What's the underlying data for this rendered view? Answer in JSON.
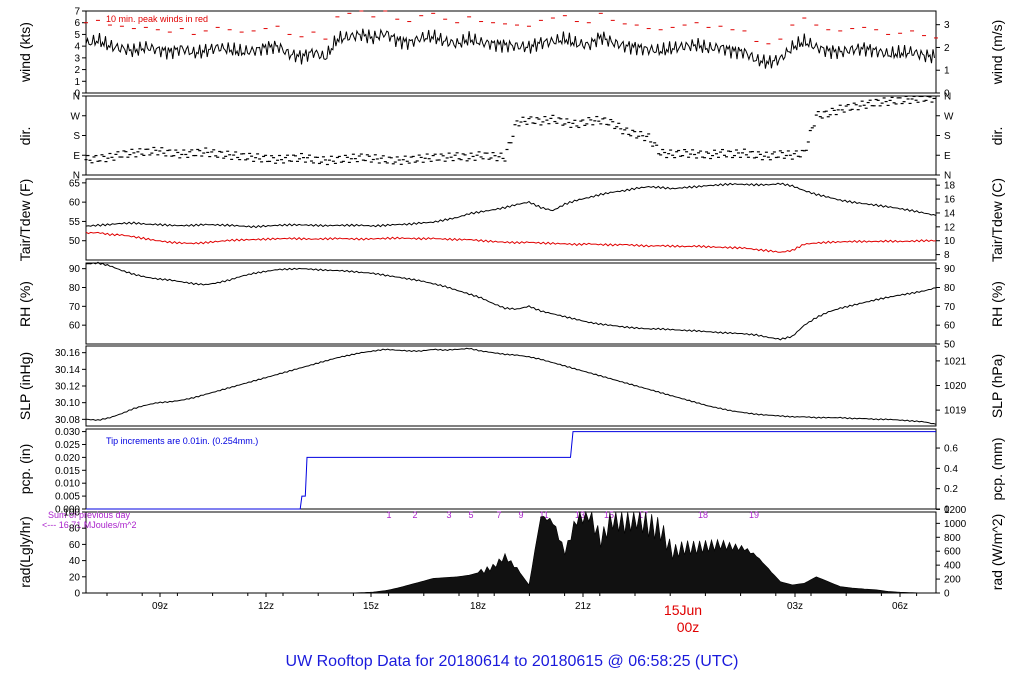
{
  "title": "UW Rooftop Data for 20180614  to  20180615 @ 06:58:25  (UTC)",
  "date_label": "15Jun",
  "date_sub": "00z",
  "colors": {
    "title": "#1a1adc",
    "peak": "#e00000",
    "dew": "#e00000",
    "pcp": "#0000e0",
    "rad_note": "#aa22cc",
    "date": "#e00000"
  },
  "chart_data": [
    {
      "type": "line",
      "panel": "wind",
      "ylabel": "wind (kts)",
      "ylabel_right": "wind (m/s)",
      "ylim": [
        0,
        7
      ],
      "yticks": [
        "0",
        "1",
        "2",
        "3",
        "4",
        "5",
        "6",
        "7"
      ],
      "yticks_right": [
        "0",
        "1",
        "2",
        "3"
      ],
      "annotation": "10 min. peak winds in red",
      "series": [
        {
          "values": [
            4.2,
            4.5,
            4.0,
            3.8,
            3.6,
            3.9,
            3.7,
            3.5,
            3.8,
            3.4,
            3.6,
            3.9,
            3.7,
            3.5,
            3.6,
            3.9,
            4.0,
            3.3,
            3.1,
            3.5,
            3.0,
            4.6,
            4.8,
            5.0,
            4.7,
            5.1,
            4.5,
            4.3,
            4.7,
            4.8,
            4.4,
            4.2,
            4.6,
            4.3,
            4.2,
            4.1,
            4.0,
            3.9,
            4.3,
            4.4,
            4.6,
            4.2,
            4.1,
            4.8,
            4.3,
            4.0,
            3.9,
            3.7,
            3.6,
            3.8,
            4.0,
            4.1,
            3.8,
            3.9,
            3.6,
            3.5,
            2.8,
            2.6,
            2.9,
            3.9,
            4.4,
            3.9,
            3.6,
            3.5,
            3.7,
            3.8,
            3.6,
            3.3,
            3.4,
            3.5,
            3.2,
            3.1
          ]
        },
        {
          "name": "peak",
          "values": [
            6.0,
            6.2,
            5.8,
            5.7,
            5.5,
            5.6,
            5.4,
            5.2,
            5.5,
            5.0,
            5.3,
            5.6,
            5.4,
            5.2,
            5.3,
            5.5,
            5.7,
            5.0,
            4.8,
            5.2,
            4.6,
            6.5,
            6.8,
            7.0,
            6.5,
            7.0,
            6.3,
            6.1,
            6.6,
            6.8,
            6.3,
            6.0,
            6.5,
            6.1,
            6.0,
            5.9,
            5.8,
            5.7,
            6.2,
            6.4,
            6.6,
            6.1,
            6.0,
            6.8,
            6.2,
            5.9,
            5.8,
            5.5,
            5.4,
            5.6,
            5.8,
            6.0,
            5.6,
            5.7,
            5.4,
            5.3,
            4.4,
            4.2,
            4.6,
            5.8,
            6.4,
            5.8,
            5.4,
            5.3,
            5.5,
            5.6,
            5.4,
            5.0,
            5.1,
            5.3,
            4.9,
            4.7
          ]
        }
      ]
    },
    {
      "type": "scatter",
      "panel": "dir",
      "ylabel": "dir.",
      "ylabel_right": "dir.",
      "yticks": [
        "N",
        "E",
        "S",
        "W",
        "N"
      ],
      "ylim": [
        0,
        360
      ],
      "series": [
        {
          "values": [
            70,
            75,
            80,
            95,
            100,
            105,
            110,
            100,
            95,
            100,
            105,
            95,
            90,
            85,
            80,
            75,
            70,
            75,
            80,
            70,
            65,
            70,
            75,
            80,
            75,
            70,
            65,
            70,
            75,
            80,
            80,
            85,
            80,
            90,
            85,
            80,
            240,
            250,
            245,
            255,
            240,
            230,
            245,
            250,
            235,
            200,
            185,
            170,
            100,
            95,
            100,
            95,
            90,
            100,
            95,
            100,
            90,
            85,
            95,
            90,
            100,
            270,
            280,
            300,
            310,
            320,
            330,
            335,
            340,
            345,
            350,
            350
          ]
        }
      ]
    },
    {
      "type": "line",
      "panel": "temp",
      "ylabel": "Tair/Tdew (F)",
      "ylabel_right": "Tair/Tdew (C)",
      "ylim": [
        45,
        66
      ],
      "yticks": [
        "50",
        "55",
        "60",
        "65"
      ],
      "yticks_right": [
        "8",
        "10",
        "12",
        "14",
        "16",
        "18"
      ],
      "series": [
        {
          "name": "Tair",
          "values": [
            53.8,
            54.0,
            54.2,
            54.5,
            54.6,
            54.3,
            54.2,
            54.0,
            53.9,
            54.0,
            54.2,
            54.1,
            54.0,
            53.8,
            53.6,
            53.8,
            54.0,
            54.1,
            54.1,
            54.0,
            53.9,
            54.0,
            54.0,
            54.0,
            53.8,
            54.0,
            54.2,
            54.3,
            54.6,
            54.8,
            55.4,
            56.0,
            57.0,
            57.5,
            58.0,
            58.6,
            59.4,
            60.0,
            58.6,
            57.8,
            59.5,
            60.5,
            61.2,
            62.0,
            62.6,
            63.0,
            63.6,
            64.0,
            63.8,
            63.5,
            63.8,
            64.0,
            64.3,
            64.5,
            64.7,
            64.6,
            64.5,
            64.5,
            64.8,
            64.2,
            63.0,
            62.0,
            61.3,
            60.5,
            60.0,
            59.6,
            59.2,
            58.8,
            58.3,
            57.8,
            57.2,
            56.5
          ]
        },
        {
          "name": "Tdew",
          "values": [
            52.0,
            52.1,
            51.6,
            51.5,
            51.0,
            50.5,
            50.0,
            49.6,
            49.4,
            49.3,
            49.5,
            49.8,
            50.1,
            50.2,
            50.3,
            50.4,
            50.5,
            50.6,
            50.5,
            50.4,
            50.5,
            50.6,
            50.5,
            50.4,
            50.5,
            50.6,
            50.7,
            50.6,
            50.5,
            50.6,
            50.4,
            50.3,
            50.3,
            50.0,
            49.8,
            49.6,
            49.5,
            49.6,
            49.4,
            49.3,
            49.2,
            49.0,
            49.2,
            49.0,
            48.9,
            49.0,
            48.8,
            48.6,
            48.7,
            48.6,
            48.5,
            48.6,
            48.4,
            48.3,
            48.2,
            48.1,
            47.7,
            47.4,
            47.0,
            47.5,
            49.1,
            49.4,
            49.6,
            49.7,
            49.8,
            49.8,
            49.8,
            49.9,
            49.8,
            49.9,
            50.0,
            50.0
          ]
        }
      ]
    },
    {
      "type": "line",
      "panel": "rh",
      "ylabel": "RH (%)",
      "ylabel_right": "RH (%)",
      "ylim": [
        50,
        93
      ],
      "yticks": [
        "60",
        "70",
        "80",
        "90"
      ],
      "yticks_right": [
        "50",
        "60",
        "70",
        "80",
        "90"
      ],
      "series": [
        {
          "values": [
            92.5,
            93.0,
            91.5,
            89.0,
            87.0,
            85.5,
            84.5,
            84.0,
            83.0,
            82.0,
            81.5,
            82.5,
            84.0,
            86.0,
            87.5,
            88.5,
            89.5,
            89.8,
            90.0,
            89.6,
            89.2,
            89.0,
            88.6,
            88.0,
            87.5,
            86.5,
            85.5,
            84.5,
            83.5,
            82.0,
            80.5,
            78.5,
            76.5,
            74.5,
            71.5,
            69.0,
            68.5,
            70.0,
            67.5,
            66.0,
            64.5,
            63.0,
            61.5,
            60.5,
            59.8,
            59.0,
            58.5,
            58.0,
            58.0,
            57.6,
            57.2,
            57.0,
            56.5,
            56.0,
            55.8,
            55.4,
            54.8,
            53.5,
            52.5,
            54.0,
            60.0,
            64.0,
            67.0,
            69.0,
            70.5,
            72.0,
            73.5,
            74.8,
            76.0,
            77.0,
            78.2,
            79.8
          ]
        }
      ]
    },
    {
      "type": "line",
      "panel": "slp",
      "ylabel": "SLP (inHg)",
      "ylabel_right": "SLP (hPa)",
      "ylim": [
        30.072,
        30.168
      ],
      "yticks": [
        "30.08",
        "30.10",
        "30.12",
        "30.14",
        "30.16"
      ],
      "yticks_right": [
        "1019",
        "1020",
        "1021"
      ],
      "series": [
        {
          "values": [
            30.08,
            30.079,
            30.082,
            30.087,
            30.093,
            30.097,
            30.1,
            30.101,
            30.103,
            30.106,
            30.11,
            30.114,
            30.118,
            30.122,
            30.126,
            30.13,
            30.134,
            30.138,
            30.142,
            30.146,
            30.15,
            30.154,
            30.157,
            30.16,
            30.162,
            30.164,
            30.163,
            30.162,
            30.162,
            30.164,
            30.163,
            30.164,
            30.165,
            30.162,
            30.16,
            30.158,
            30.157,
            30.155,
            30.152,
            30.148,
            30.144,
            30.14,
            30.136,
            30.132,
            30.128,
            30.124,
            30.12,
            30.116,
            30.112,
            30.108,
            30.104,
            30.1,
            30.096,
            30.093,
            30.09,
            30.088,
            30.086,
            30.085,
            30.084,
            30.083,
            30.083,
            30.082,
            30.082,
            30.082,
            30.081,
            30.081,
            30.08,
            30.08,
            30.079,
            30.078,
            30.077,
            30.074
          ]
        }
      ]
    },
    {
      "type": "line",
      "panel": "pcp",
      "ylabel": "pcp. (in)",
      "ylabel_right": "pcp. (mm)",
      "ylim": [
        0,
        0.031
      ],
      "yticks": [
        "0.000",
        "0.005",
        "0.010",
        "0.015",
        "0.020",
        "0.025",
        "0.030"
      ],
      "yticks_right": [
        "0",
        "0.2",
        "0.4",
        "0.6"
      ],
      "annotation": "Tip increments are 0.01in. (0.254mm.)",
      "x": [
        0,
        25.2,
        25.4,
        25.8,
        26.0,
        57.0,
        57.3,
        100
      ],
      "series": [
        {
          "values": [
            0,
            0,
            0.005,
            0.005,
            0.02,
            0.02,
            0.03,
            0.03
          ]
        }
      ]
    },
    {
      "type": "area",
      "panel": "rad",
      "ylabel": "rad(Lgly/hr)",
      "ylabel_right": "rad (W/m^2)",
      "ylim": [
        0,
        100
      ],
      "yticks": [
        "0",
        "20",
        "40",
        "60",
        "80",
        "100"
      ],
      "yticks_right": [
        "0",
        "200",
        "400",
        "600",
        "800",
        "1000",
        "1200"
      ],
      "annotation": [
        "Sum of previous day",
        "<--- 16.71 MJoules/m^2"
      ],
      "hour_labels": [
        "1",
        "2",
        "3",
        "4",
        "5",
        "6",
        "7",
        "8",
        "9",
        "10",
        "11",
        "12",
        "13",
        "14",
        "15",
        "16",
        "17",
        "18",
        "19"
      ],
      "series": [
        {
          "values": [
            0,
            0,
            0,
            0,
            0,
            0,
            0,
            0,
            0,
            0,
            0,
            0,
            0,
            0,
            0,
            0,
            0,
            0,
            0,
            0,
            0,
            0,
            0,
            0.5,
            1.2,
            3,
            6,
            10,
            14,
            18,
            19,
            20,
            22,
            26,
            32,
            45,
            30,
            10,
            95,
            88,
            50,
            92,
            100,
            65,
            93,
            88,
            96,
            84,
            78,
            50,
            56,
            56,
            58,
            60,
            57,
            55,
            46,
            30,
            14,
            10,
            12,
            20,
            14,
            8,
            6,
            5,
            4,
            2,
            1,
            0.5,
            0,
            0
          ]
        }
      ]
    },
    {
      "type": "axis",
      "panel": "time",
      "xticks": [
        "09z",
        "12z",
        "15z",
        "18z",
        "21z",
        "03z",
        "06z"
      ]
    }
  ]
}
